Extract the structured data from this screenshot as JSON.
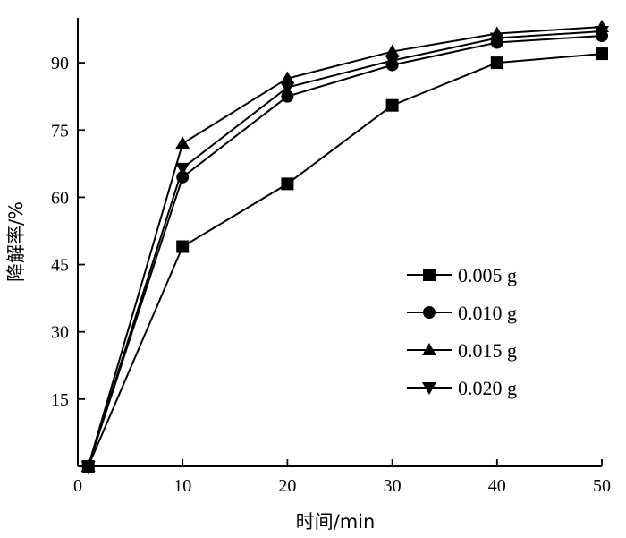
{
  "chart_data": {
    "type": "line",
    "title": "",
    "xlabel": "时间/min",
    "ylabel": "降解率/%",
    "x": [
      1,
      10,
      20,
      30,
      40,
      50
    ],
    "xlim": [
      0,
      50
    ],
    "ylim": [
      0,
      100
    ],
    "xticks": [
      0,
      10,
      20,
      30,
      40,
      50
    ],
    "yticks": [
      15,
      30,
      45,
      60,
      75,
      90
    ],
    "grid": false,
    "legend_position": "lower-right",
    "series": [
      {
        "name": "0.005 g",
        "marker": "square",
        "values": [
          0,
          49,
          63,
          80.5,
          90,
          92
        ]
      },
      {
        "name": "0.010 g",
        "marker": "circle",
        "values": [
          0,
          64.5,
          82.5,
          89.5,
          94.5,
          96
        ]
      },
      {
        "name": "0.015 g",
        "marker": "triangle-up",
        "values": [
          0,
          72,
          86.5,
          92.5,
          96.5,
          98
        ]
      },
      {
        "name": "0.020 g",
        "marker": "triangle-down",
        "values": [
          0,
          66.5,
          84.5,
          90.5,
          95.5,
          97
        ]
      }
    ]
  }
}
